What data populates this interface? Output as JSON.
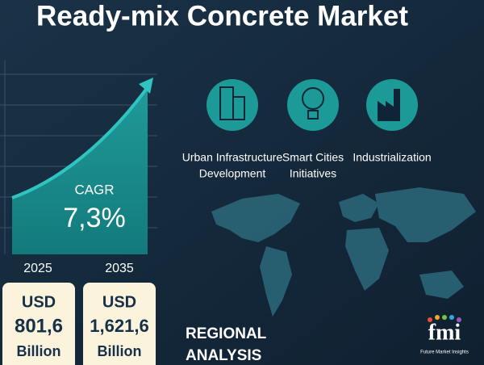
{
  "header": {
    "title": "Ready-mix Concrete Market"
  },
  "growth": {
    "label": "CAGR",
    "rate": "7,3%"
  },
  "years": [
    "2025",
    "2035"
  ],
  "cards": [
    {
      "currency": "USD",
      "amount": "801,6",
      "unit": "Billion"
    },
    {
      "currency": "USD",
      "amount": "1,621,6",
      "unit": "Billion"
    }
  ],
  "drivers": [
    {
      "lines": [
        "Urban Infrastructure",
        "Development"
      ]
    },
    {
      "lines": [
        "Smart Cities",
        "Initiatives"
      ]
    },
    {
      "lines": [
        "Industrialization"
      ]
    }
  ],
  "regional": {
    "lines": [
      "REGIONAL",
      "ANALYSIS"
    ]
  },
  "logo": {
    "mark": "fmi",
    "name": "Future Market Insights"
  }
}
